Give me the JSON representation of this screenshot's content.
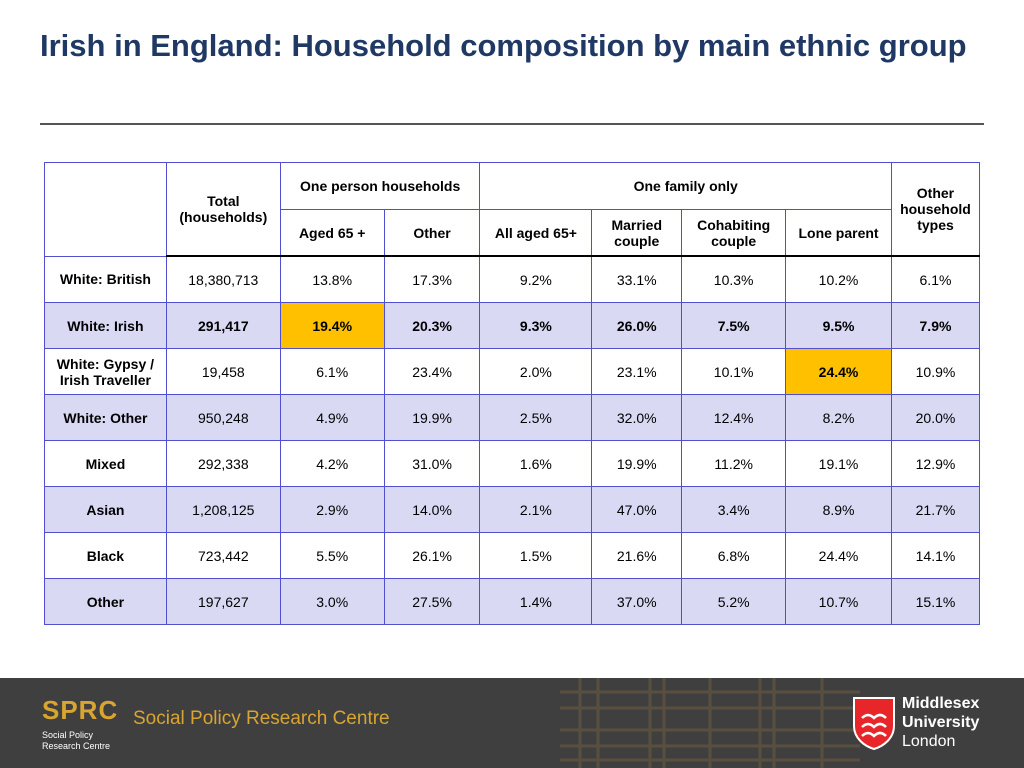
{
  "title": "Irish in England: Household composition by main ethnic group",
  "table": {
    "header_total": "Total (households)",
    "group_one_person": "One person households",
    "group_one_family": "One family only",
    "header_other_types": "Other household types",
    "sub_headers": [
      "Aged 65 +",
      "Other",
      "All aged 65+",
      "Married couple",
      "Cohabiting couple",
      "Lone parent"
    ],
    "rows": [
      {
        "label": "White: British",
        "values": [
          "18,380,713",
          "13.8%",
          "17.3%",
          "9.2%",
          "33.1%",
          "10.3%",
          "10.2%",
          "6.1%"
        ]
      },
      {
        "label": "White: Irish",
        "values": [
          "291,417",
          "19.4%",
          "20.3%",
          "9.3%",
          "26.0%",
          "7.5%",
          "9.5%",
          "7.9%"
        ]
      },
      {
        "label": "White: Gypsy / Irish Traveller",
        "values": [
          "19,458",
          "6.1%",
          "23.4%",
          "2.0%",
          "23.1%",
          "10.1%",
          "24.4%",
          "10.9%"
        ]
      },
      {
        "label": "White: Other",
        "values": [
          "950,248",
          "4.9%",
          "19.9%",
          "2.5%",
          "32.0%",
          "12.4%",
          "8.2%",
          "20.0%"
        ]
      },
      {
        "label": "Mixed",
        "values": [
          "292,338",
          "4.2%",
          "31.0%",
          "1.6%",
          "19.9%",
          "11.2%",
          "19.1%",
          "12.9%"
        ]
      },
      {
        "label": "Asian",
        "values": [
          "1,208,125",
          "2.9%",
          "14.0%",
          "2.1%",
          "47.0%",
          "3.4%",
          "8.9%",
          "21.7%"
        ]
      },
      {
        "label": "Black",
        "values": [
          "723,442",
          "5.5%",
          "26.1%",
          "1.5%",
          "21.6%",
          "6.8%",
          "24.4%",
          "14.1%"
        ]
      },
      {
        "label": "Other",
        "values": [
          "197,627",
          "3.0%",
          "27.5%",
          "1.4%",
          "37.0%",
          "5.2%",
          "10.7%",
          "15.1%"
        ]
      }
    ]
  },
  "footer": {
    "sprc_acronym": "SPRC",
    "sprc_small": "Social Policy Research Centre",
    "sprc_name": "Social Policy Research Centre",
    "university_line1": "Middlesex",
    "university_line2": "University",
    "university_line3": "London"
  },
  "colors": {
    "title": "#1f3864",
    "row_shade": "#d9d9f3",
    "highlight": "#ffc000",
    "border": "#4f4fd0",
    "footer_bg": "#3f3f3f",
    "sprc_gold": "#d9a531",
    "shield_red": "#e8262a"
  }
}
